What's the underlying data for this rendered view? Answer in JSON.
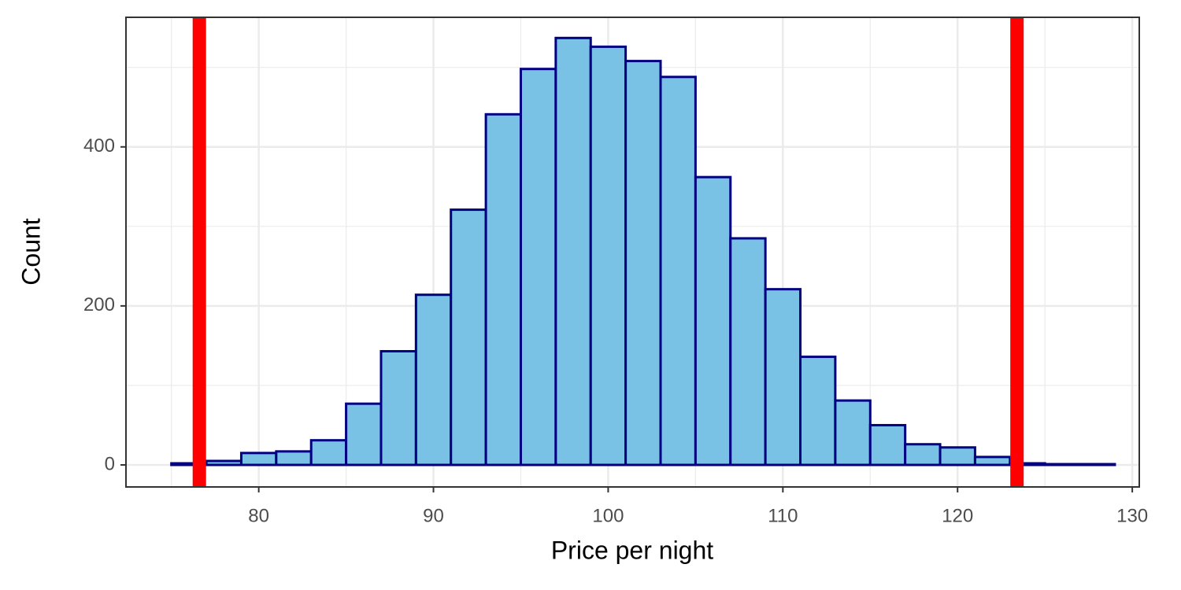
{
  "chart_data": {
    "type": "histogram",
    "x_label": "Price per night",
    "y_label": "Count",
    "bins": [
      75,
      77,
      79,
      81,
      83,
      85,
      87,
      89,
      91,
      93,
      95,
      97,
      99,
      101,
      103,
      105,
      107,
      109,
      111,
      113,
      115,
      117,
      119,
      121,
      123,
      125,
      127,
      129
    ],
    "values": [
      2,
      5,
      15,
      17,
      31,
      77,
      143,
      214,
      321,
      441,
      498,
      537,
      526,
      508,
      488,
      362,
      285,
      221,
      136,
      81,
      50,
      26,
      22,
      10,
      2,
      1,
      1
    ],
    "color": "#79c2e6",
    "edge_color": "#000080",
    "xlim": [
      72.4,
      130.4
    ],
    "xticks": [
      80,
      90,
      100,
      110,
      120,
      130
    ],
    "ylim": [
      -27.7,
      563
    ],
    "yticks": [
      0,
      200,
      400
    ],
    "grid": true,
    "minor_grid": true,
    "vlines": [
      76.6,
      123.4
    ],
    "vline_color": "#ff0000"
  }
}
